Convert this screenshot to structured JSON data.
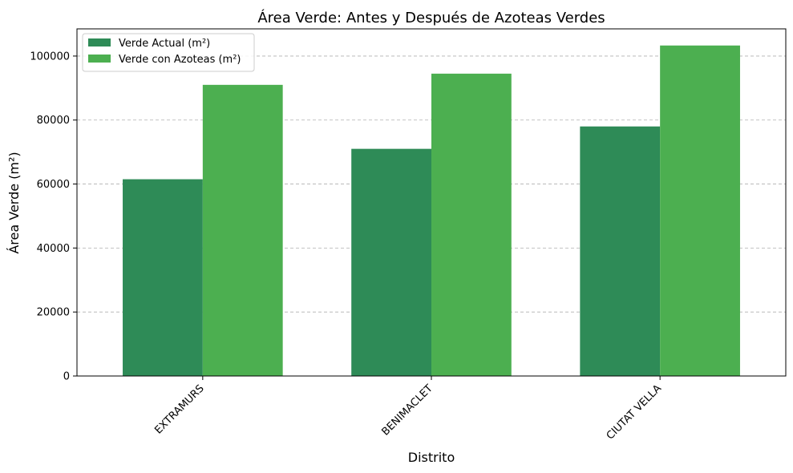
{
  "chart_data": {
    "type": "bar",
    "title": "Área Verde: Antes y Después de Azoteas Verdes",
    "xlabel": "Distrito",
    "ylabel": "Área Verde (m²)",
    "categories": [
      "EXTRAMURS",
      "BENIMACLET",
      "CIUTAT VELLA"
    ],
    "series": [
      {
        "name": "Verde Actual (m²)",
        "color": "#2e8b57",
        "values": [
          61500,
          71000,
          78000
        ]
      },
      {
        "name": "Verde con Azoteas (m²)",
        "color": "#4caf50",
        "values": [
          91000,
          94500,
          103300
        ]
      }
    ],
    "ylim": [
      0,
      108500
    ],
    "yticks": [
      0,
      20000,
      40000,
      60000,
      80000,
      100000
    ],
    "grid": "y-dashed",
    "legend_position": "top-left"
  }
}
